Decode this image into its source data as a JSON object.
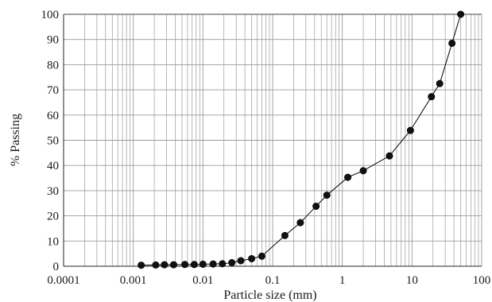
{
  "chart_data": {
    "type": "scatter",
    "title": "",
    "xlabel": "Particle size (mm)",
    "ylabel": "% Passing",
    "xscale": "log",
    "xlim": [
      0.0001,
      100
    ],
    "ylim": [
      0,
      100
    ],
    "grid": true,
    "legend": "none",
    "line_color": "#000000",
    "marker_color": "#111111",
    "grid_color": "#9a9a9a",
    "x_tick_labels": [
      "0.0001",
      "0.001",
      "0.01",
      "0.1",
      "1",
      "10",
      "100"
    ],
    "y_tick_labels": [
      "0",
      "10",
      "20",
      "30",
      "40",
      "50",
      "60",
      "70",
      "80",
      "90",
      "100"
    ],
    "series": [
      {
        "markers": "circle",
        "line": true,
        "x": [
          0.0013,
          0.0021,
          0.0028,
          0.0038,
          0.0055,
          0.0075,
          0.01,
          0.014,
          0.019,
          0.026,
          0.035,
          0.05,
          0.07,
          0.15,
          0.25,
          0.42,
          0.6,
          1.2,
          2.0,
          4.75,
          9.5,
          19,
          25,
          37.5,
          50
        ],
        "y": [
          0.4,
          0.5,
          0.6,
          0.6,
          0.7,
          0.7,
          0.8,
          0.9,
          1.0,
          1.4,
          2.2,
          3.0,
          4.0,
          12.2,
          17.3,
          23.8,
          28.2,
          35.3,
          37.9,
          43.8,
          53.9,
          67.3,
          72.5,
          88.5,
          100
        ]
      }
    ]
  }
}
